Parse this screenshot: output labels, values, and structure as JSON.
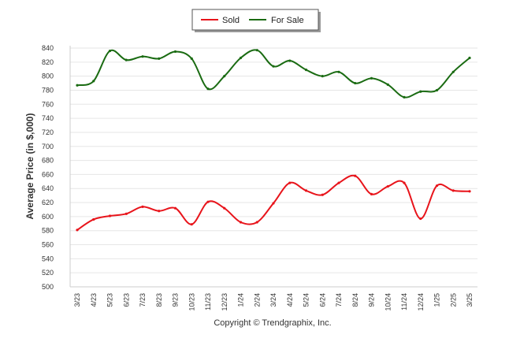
{
  "chart_data": {
    "type": "line",
    "ylabel": "Average Price (in $,000)",
    "ylim": [
      500,
      840
    ],
    "yticks": [
      500,
      520,
      540,
      560,
      580,
      600,
      620,
      640,
      660,
      680,
      700,
      720,
      740,
      760,
      780,
      800,
      820,
      840
    ],
    "categories": [
      "3/23",
      "4/23",
      "5/23",
      "6/23",
      "7/23",
      "8/23",
      "9/23",
      "10/23",
      "11/23",
      "12/23",
      "1/24",
      "2/24",
      "3/24",
      "4/24",
      "5/24",
      "6/24",
      "7/24",
      "8/24",
      "9/24",
      "10/24",
      "11/24",
      "12/24",
      "1/25",
      "2/25",
      "3/25"
    ],
    "grid": "horizontal",
    "legend_placement": "top-center",
    "series": [
      {
        "name": "Sold",
        "color": "#e8141b",
        "values": [
          581,
          596,
          601,
          604,
          614,
          608,
          612,
          589,
          621,
          612,
          592,
          592,
          619,
          648,
          637,
          631,
          648,
          658,
          632,
          643,
          648,
          597,
          644,
          637,
          636
        ]
      },
      {
        "name": "For Sale",
        "color": "#1a6b12",
        "values": [
          787,
          793,
          836,
          823,
          828,
          825,
          835,
          825,
          782,
          800,
          826,
          837,
          814,
          822,
          809,
          800,
          806,
          790,
          797,
          788,
          770,
          778,
          780,
          806,
          826
        ]
      }
    ]
  },
  "footer": {
    "copyright": "Copyright © Trendgraphix, Inc."
  }
}
